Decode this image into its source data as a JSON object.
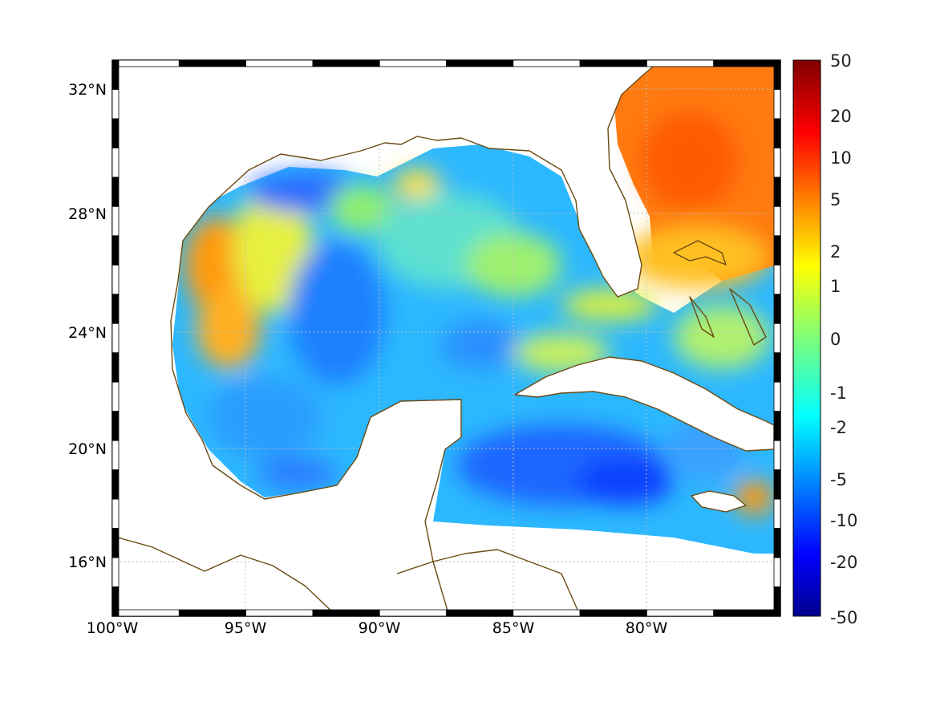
{
  "map": {
    "lon_ticks": [
      "100°W",
      "95°W",
      "90°W",
      "85°W",
      "80°W"
    ],
    "lat_ticks": [
      "32°N",
      "28°N",
      "24°N",
      "20°N",
      "16°N"
    ],
    "extent": {
      "lon_min": -100,
      "lon_max": -75,
      "lat_min": 14.3,
      "lat_max": 33
    },
    "colors": {
      "coastline": "#6b4a12",
      "grid": "#bdbdbd"
    }
  },
  "colorbar": {
    "tick_labels": [
      "50",
      "20",
      "10",
      "5",
      "2",
      "1",
      "0",
      "-1",
      "-2",
      "-5",
      "-10",
      "-20",
      "-50"
    ],
    "colormap": "jet",
    "range": [
      -50,
      50
    ]
  }
}
